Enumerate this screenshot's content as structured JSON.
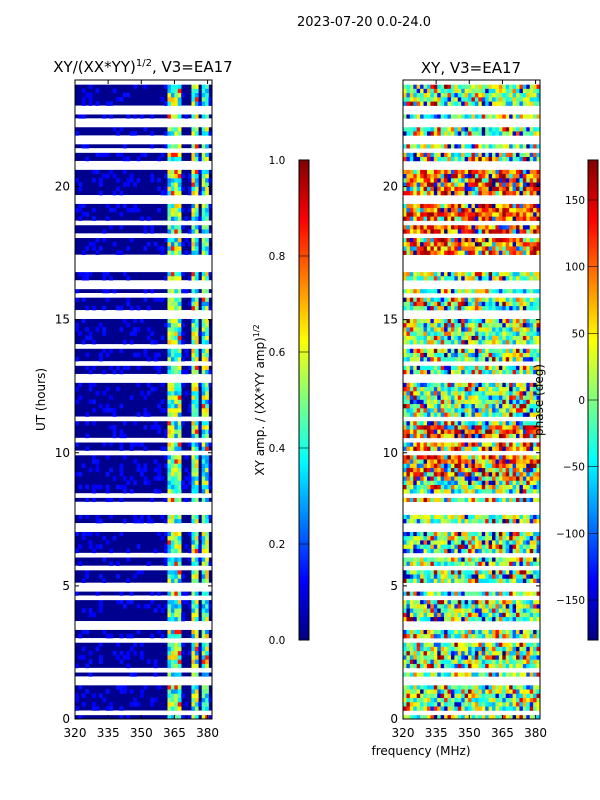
{
  "figure": {
    "suptitle": "2023-07-20 0.0-24.0",
    "common_xlabel": "frequency (MHz)"
  },
  "chart_data": [
    {
      "type": "heatmap",
      "title": "XY/(XX*YY)",
      "title_superscript": "1/2",
      "title_suffix": ", V3=EA17",
      "xlabel": "",
      "ylabel": "UT (hours)",
      "xlim": [
        320,
        382
      ],
      "ylim": [
        0,
        24
      ],
      "xticks": [
        320,
        335,
        350,
        365,
        380
      ],
      "yticks": [
        0,
        5,
        10,
        15,
        20
      ],
      "colorbar": {
        "label": "XY amp. / (XX*YY amp)",
        "label_superscript": "1/2",
        "range": [
          0.0,
          1.0
        ],
        "ticks": [
          "0.0",
          "0.2",
          "0.4",
          "0.6",
          "0.8",
          "1.0"
        ],
        "colormap": "jet"
      },
      "flagged_hour_bands": [
        [
          22.3,
          22.6
        ],
        [
          20.7,
          21.0
        ],
        [
          16.9,
          17.2
        ],
        [
          15.1,
          15.3
        ],
        [
          7.9,
          8.2
        ],
        [
          3.4,
          3.5
        ]
      ],
      "bright_channels_mhz": [
        [
          362,
          366
        ],
        [
          366,
          368
        ],
        [
          373,
          376
        ],
        [
          377,
          381
        ]
      ]
    },
    {
      "type": "heatmap",
      "title": "XY, V3=EA17",
      "xlabel": "",
      "ylabel": "",
      "xlim": [
        320,
        382
      ],
      "ylim": [
        0,
        24
      ],
      "xticks": [
        320,
        335,
        350,
        365,
        380
      ],
      "yticks": [
        0,
        5,
        10,
        15,
        20
      ],
      "colorbar": {
        "label": "phase (deg)",
        "range": [
          -180,
          180
        ],
        "ticks": [
          "150",
          "100",
          "50",
          "0",
          "−50",
          "−100",
          "−150"
        ],
        "colormap": "jet"
      }
    }
  ]
}
